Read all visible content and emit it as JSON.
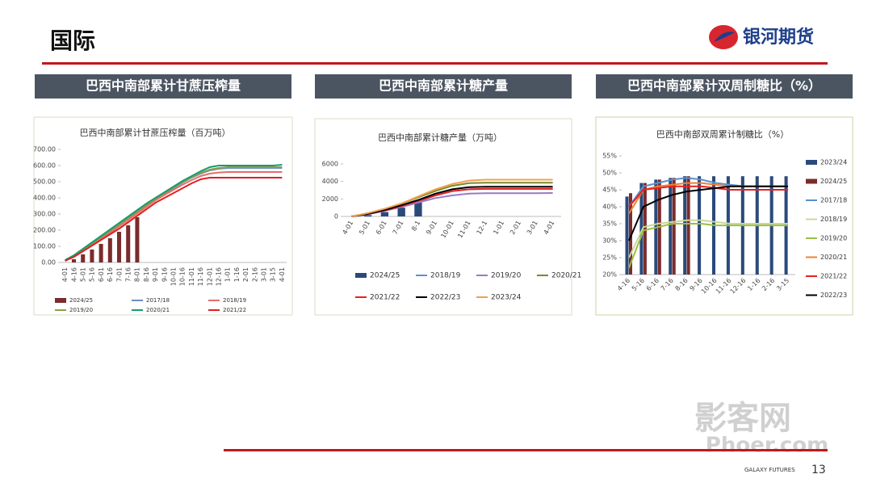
{
  "header": {
    "title": "国际",
    "logo": "银河期货"
  },
  "panels": [
    "巴西中南部累计甘蔗压榨量",
    "巴西中南部累计糖产量",
    "巴西中南部累计双周制糖比（%）"
  ],
  "footer": {
    "company": "GALAXY FUTURES",
    "page": "13"
  },
  "watermark": [
    "影客网",
    "Phoer.com"
  ],
  "chart_data": [
    {
      "type": "combo",
      "title": "巴西中南部累计甘蔗压榨量（百万吨）",
      "categories": [
        "4-01",
        "4-16",
        "5-01",
        "5-16",
        "6-01",
        "6-16",
        "7-01",
        "7-16",
        "8-01",
        "8-16",
        "9-01",
        "9-16",
        "10-01",
        "10-16",
        "11-01",
        "11-16",
        "12-01",
        "12-16",
        "1-01",
        "1-16",
        "2-01",
        "2-16",
        "3-01",
        "3-15",
        "4-01"
      ],
      "ylim": [
        0,
        700
      ],
      "yticks": [
        {
          "value": 0,
          "label": "0.00"
        },
        {
          "value": 100,
          "label": "100.00"
        },
        {
          "value": 200,
          "label": "200.00"
        },
        {
          "value": 300,
          "label": "300.00"
        },
        {
          "value": 400,
          "label": "400.00"
        },
        {
          "value": 500,
          "label": "500.00"
        },
        {
          "value": 600,
          "label": "600.00"
        },
        {
          "value": 700,
          "label": "700.00"
        }
      ],
      "series": [
        {
          "name": "2024/25",
          "kind": "bar",
          "color": "#7b2c2c",
          "values": [
            0,
            20,
            50,
            80,
            115,
            150,
            190,
            230,
            280,
            null,
            null,
            null,
            null,
            null,
            null,
            null,
            null,
            null,
            null,
            null,
            null,
            null,
            null,
            null,
            null
          ]
        },
        {
          "name": "2017/18",
          "kind": "line",
          "color": "#6a8fc4",
          "values": [
            10,
            40,
            75,
            110,
            150,
            190,
            230,
            270,
            310,
            350,
            390,
            425,
            460,
            495,
            525,
            550,
            570,
            580,
            585,
            585,
            585,
            585,
            585,
            585,
            585
          ]
        },
        {
          "name": "2018/19",
          "kind": "line",
          "color": "#e0706a",
          "values": [
            10,
            38,
            72,
            106,
            145,
            185,
            225,
            265,
            305,
            345,
            385,
            418,
            450,
            482,
            510,
            535,
            550,
            557,
            560,
            560,
            560,
            560,
            560,
            560,
            560
          ]
        },
        {
          "name": "2019/20",
          "kind": "line",
          "color": "#8aa04a",
          "values": [
            12,
            42,
            80,
            118,
            158,
            198,
            238,
            278,
            318,
            358,
            395,
            430,
            465,
            498,
            528,
            555,
            575,
            585,
            590,
            590,
            590,
            590,
            590,
            590,
            590
          ]
        },
        {
          "name": "2020/21",
          "kind": "line",
          "color": "#1a9a6e",
          "values": [
            15,
            45,
            85,
            125,
            165,
            205,
            245,
            285,
            325,
            365,
            400,
            435,
            470,
            505,
            535,
            565,
            590,
            600,
            600,
            600,
            600,
            600,
            600,
            600,
            605
          ]
        },
        {
          "name": "2021/22",
          "kind": "line",
          "color": "#e02020",
          "values": [
            10,
            35,
            70,
            105,
            140,
            175,
            210,
            250,
            290,
            330,
            370,
            400,
            430,
            460,
            490,
            515,
            525,
            525,
            525,
            525,
            525,
            525,
            525,
            525,
            525
          ]
        }
      ]
    },
    {
      "type": "combo",
      "title": "巴西中南部累计糖产量（万吨）",
      "categories": [
        "4-01",
        "5-01",
        "6-01",
        "7-01",
        "8-1",
        "9-01",
        "10-01",
        "11-01",
        "12-1",
        "1-01",
        "2-01",
        "3-01",
        "4-01"
      ],
      "ylim": [
        0,
        6000
      ],
      "yticks": [
        0,
        2000,
        4000,
        6000
      ],
      "series": [
        {
          "name": "2024/25",
          "kind": "bar",
          "color": "#2a4a7a",
          "values": [
            0,
            150,
            500,
            1000,
            1600,
            null,
            null,
            null,
            null,
            null,
            null,
            null,
            null
          ]
        },
        {
          "name": "2018/19",
          "kind": "line",
          "color": "#5b8fd0",
          "values": [
            0,
            300,
            700,
            1200,
            1700,
            2400,
            2900,
            3100,
            3150,
            3150,
            3150,
            3150,
            3150
          ]
        },
        {
          "name": "2019/20",
          "kind": "line",
          "color": "#9a7ac8",
          "values": [
            0,
            250,
            650,
            1100,
            1600,
            2100,
            2400,
            2600,
            2650,
            2650,
            2650,
            2650,
            2680
          ]
        },
        {
          "name": "2020/21",
          "kind": "line",
          "color": "#7a8a2a",
          "values": [
            0,
            350,
            850,
            1500,
            2200,
            2900,
            3500,
            3800,
            3850,
            3850,
            3850,
            3850,
            3850
          ]
        },
        {
          "name": "2021/22",
          "kind": "line",
          "color": "#e82020",
          "values": [
            0,
            300,
            700,
            1200,
            1800,
            2400,
            2900,
            3100,
            3150,
            3150,
            3150,
            3150,
            3150
          ]
        },
        {
          "name": "2022/23",
          "kind": "line",
          "color": "#000000",
          "values": [
            0,
            300,
            750,
            1300,
            1900,
            2600,
            3100,
            3350,
            3400,
            3400,
            3400,
            3400,
            3400
          ]
        },
        {
          "name": "2023/24",
          "kind": "line",
          "color": "#f0a050",
          "values": [
            0,
            400,
            900,
            1500,
            2300,
            3100,
            3700,
            4100,
            4200,
            4200,
            4200,
            4200,
            4200
          ]
        }
      ]
    },
    {
      "type": "combo",
      "title": "巴西中南部双周累计制糖比（%）",
      "categories": [
        "4-16",
        "5-16",
        "6-16",
        "7-16",
        "8-16",
        "9-16",
        "10-16",
        "11-16",
        "12-16",
        "1-16",
        "2-16",
        "3-15"
      ],
      "ylim": [
        20,
        55
      ],
      "yticks": [
        {
          "value": 20,
          "label": "20%"
        },
        {
          "value": 25,
          "label": "25%"
        },
        {
          "value": 30,
          "label": "30%"
        },
        {
          "value": 35,
          "label": "35%"
        },
        {
          "value": 40,
          "label": "40%"
        },
        {
          "value": 45,
          "label": "45%"
        },
        {
          "value": 50,
          "label": "50%"
        },
        {
          "value": 55,
          "label": "55%"
        }
      ],
      "series": [
        {
          "name": "2023/24",
          "kind": "bar",
          "color": "#2a4a7a",
          "values": [
            43,
            47,
            48,
            48.5,
            49,
            49,
            49,
            49,
            49,
            49,
            49,
            49
          ]
        },
        {
          "name": "2024/25",
          "kind": "bar",
          "color": "#7b2c2c",
          "values": [
            44,
            47,
            48,
            48.5,
            49,
            null,
            null,
            null,
            null,
            null,
            null,
            null
          ]
        },
        {
          "name": "2017/18",
          "kind": "line",
          "color": "#5b8fd0",
          "values": [
            40,
            46,
            47,
            48,
            48.5,
            48,
            47,
            46.5,
            46,
            46,
            46,
            46
          ]
        },
        {
          "name": "2018/19",
          "kind": "line",
          "color": "#c8d8a0",
          "values": [
            25,
            34,
            35,
            35.5,
            36,
            36,
            35.5,
            35,
            35,
            35,
            35,
            35
          ]
        },
        {
          "name": "2019/20",
          "kind": "line",
          "color": "#9ac040",
          "values": [
            22,
            33,
            34,
            35,
            35,
            35,
            34.5,
            34.5,
            34.5,
            34.5,
            34.5,
            34.5
          ]
        },
        {
          "name": "2020/21",
          "kind": "line",
          "color": "#f08030",
          "values": [
            38,
            45,
            46,
            46.5,
            47,
            47,
            46.5,
            46,
            46,
            46,
            46,
            46
          ]
        },
        {
          "name": "2021/22",
          "kind": "line",
          "color": "#e82020",
          "values": [
            40,
            45,
            45.5,
            46,
            46,
            46,
            45.5,
            45,
            45,
            45,
            45,
            45
          ]
        },
        {
          "name": "2022/23",
          "kind": "line",
          "color": "#000000",
          "values": [
            30,
            40,
            42,
            43.5,
            44.5,
            45,
            45.5,
            46,
            46,
            46,
            46,
            46
          ]
        }
      ]
    }
  ]
}
